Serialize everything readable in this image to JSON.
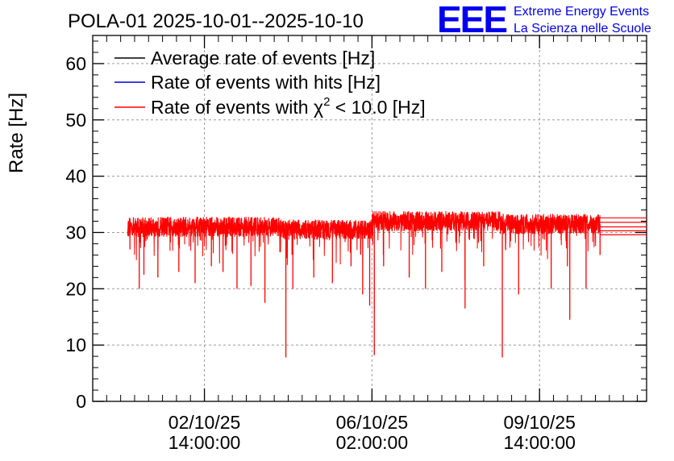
{
  "chart_data": {
    "type": "line",
    "title": "POLA-01 2025-10-01--2025-10-10",
    "ylabel": "Rate [Hz]",
    "xlabel": "",
    "ylim": [
      0,
      65
    ],
    "yticks": [
      0,
      10,
      20,
      30,
      40,
      50,
      60
    ],
    "yticklabels": [
      "0",
      "10",
      "20",
      "30",
      "40",
      "50",
      "60"
    ],
    "xlim_hours": [
      0,
      238
    ],
    "xtick_hours": [
      48,
      120,
      192
    ],
    "xticklabels": [
      {
        "date": "02/10/25",
        "time": "14:00:00"
      },
      {
        "date": "06/10/25",
        "time": "02:00:00"
      },
      {
        "date": "09/10/25",
        "time": "14:00:00"
      }
    ],
    "grid": true,
    "legend": {
      "placement": "top-left",
      "entries": [
        {
          "label": "Average rate of events [Hz]",
          "color": "#000000"
        },
        {
          "label": "Rate of events with hits [Hz]",
          "color": "#0000cc"
        },
        {
          "label_prefix": "Rate of events with ",
          "label_symbol": "χ",
          "label_sup": "2",
          "label_suffix": " < 10.0 [Hz]",
          "color": "#ff0000"
        }
      ]
    },
    "series": [
      {
        "name": "Rate of events with chi2 < 10.0 [Hz]",
        "color": "#ff0000",
        "segment_hours": [
          [
            15,
            80,
            31.0
          ],
          [
            80,
            120,
            30.5
          ],
          [
            120,
            175,
            32.0
          ],
          [
            175,
            218,
            31.5
          ]
        ],
        "noise_band": 1.8,
        "dips": [
          [
            16,
            27.0
          ],
          [
            20,
            20.0
          ],
          [
            22,
            22.5
          ],
          [
            28,
            22.0
          ],
          [
            37,
            23.0
          ],
          [
            44,
            21.0
          ],
          [
            51,
            24.0
          ],
          [
            56,
            23.0
          ],
          [
            62,
            20.0
          ],
          [
            68,
            20.5
          ],
          [
            74,
            17.5
          ],
          [
            86,
            20.0
          ],
          [
            95,
            22.0
          ],
          [
            103,
            21.0
          ],
          [
            111,
            24.0
          ],
          [
            116,
            19.0
          ],
          [
            125,
            24.0
          ],
          [
            136,
            22.0
          ],
          [
            143,
            20.0
          ],
          [
            150,
            23.0
          ],
          [
            160,
            21.5
          ],
          [
            168,
            24.0
          ],
          [
            183,
            19.0
          ],
          [
            197,
            20.0
          ],
          [
            204,
            24.0
          ],
          [
            212,
            20.0
          ],
          [
            218,
            26.0
          ]
        ],
        "deep_dips": [
          [
            83,
            7.8
          ],
          [
            119,
            17.0
          ],
          [
            121,
            8.2
          ],
          [
            160,
            16.5
          ],
          [
            176,
            7.8
          ],
          [
            205,
            14.5
          ]
        ],
        "flat_lines": [
          [
            218,
            238,
            29.6
          ],
          [
            218,
            238,
            30.3
          ],
          [
            218,
            238,
            31.0
          ],
          [
            218,
            238,
            31.8
          ],
          [
            218,
            238,
            32.6
          ]
        ]
      }
    ]
  },
  "logo": {
    "letters": "EEE",
    "line1": "Extreme Energy Events",
    "line2": "La Scienza nelle Scuole",
    "color": "#0000ee"
  }
}
